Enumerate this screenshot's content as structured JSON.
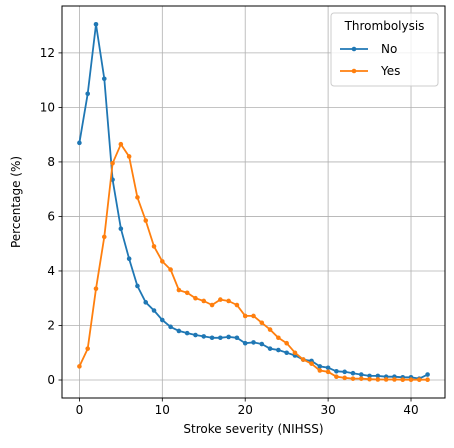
{
  "chart_data": {
    "type": "line",
    "title": "",
    "xlabel": "Stroke severity (NIHSS)",
    "ylabel": "Percentage (%)",
    "xlim": [
      -2.1,
      44.1
    ],
    "ylim": [
      -0.66,
      13.72
    ],
    "xticks": [
      0,
      10,
      20,
      30,
      40
    ],
    "yticks": [
      0,
      2,
      4,
      6,
      8,
      10,
      12
    ],
    "grid": true,
    "legend": {
      "title": "Thrombolysis",
      "placement": "top-right"
    },
    "x": [
      0,
      1,
      2,
      3,
      4,
      5,
      6,
      7,
      8,
      9,
      10,
      11,
      12,
      13,
      14,
      15,
      16,
      17,
      18,
      19,
      20,
      21,
      22,
      23,
      24,
      25,
      26,
      27,
      28,
      29,
      30,
      31,
      32,
      33,
      34,
      35,
      36,
      37,
      38,
      39,
      40,
      41,
      42
    ],
    "series": [
      {
        "name": "No",
        "color": "#1f77b4",
        "values": [
          8.7,
          10.5,
          13.05,
          11.05,
          7.35,
          5.55,
          4.45,
          3.45,
          2.85,
          2.55,
          2.2,
          1.95,
          1.8,
          1.72,
          1.65,
          1.6,
          1.55,
          1.55,
          1.58,
          1.55,
          1.35,
          1.38,
          1.32,
          1.15,
          1.1,
          1.0,
          0.9,
          0.75,
          0.7,
          0.5,
          0.45,
          0.32,
          0.3,
          0.25,
          0.2,
          0.15,
          0.15,
          0.12,
          0.12,
          0.1,
          0.1,
          0.05,
          0.2
        ]
      },
      {
        "name": "Yes",
        "color": "#ff7f0e",
        "values": [
          0.5,
          1.15,
          3.35,
          5.25,
          7.95,
          8.65,
          8.2,
          6.7,
          5.85,
          4.9,
          4.35,
          4.05,
          3.3,
          3.2,
          3.0,
          2.9,
          2.75,
          2.95,
          2.9,
          2.75,
          2.35,
          2.35,
          2.1,
          1.85,
          1.55,
          1.35,
          1.0,
          0.75,
          0.6,
          0.35,
          0.3,
          0.12,
          0.08,
          0.05,
          0.05,
          0.03,
          0.02,
          0.02,
          0.02,
          0.01,
          0.01,
          0.01,
          0.01
        ]
      }
    ]
  }
}
